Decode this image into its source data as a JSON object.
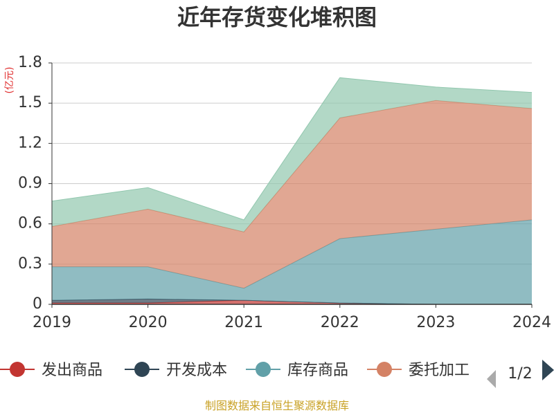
{
  "chart_data": {
    "type": "area",
    "stacked": true,
    "title": "近年存货变化堆积图",
    "unit_label": "(亿元)",
    "x": [
      "2019",
      "2020",
      "2021",
      "2022",
      "2023",
      "2024"
    ],
    "ylim": [
      0,
      1.8
    ],
    "yticks": [
      "0",
      "0.3",
      "0.6",
      "0.9",
      "1.2",
      "1.5",
      "1.8"
    ],
    "grid": true,
    "legend_position": "bottom",
    "series": [
      {
        "name": "发出商品",
        "color": "#c23531",
        "values": [
          0.01,
          0.01,
          0.03,
          0.01,
          0.0,
          0.0
        ]
      },
      {
        "name": "开发成本",
        "color": "#2f4554",
        "values": [
          0.02,
          0.03,
          0.0,
          0.0,
          0.0,
          0.0
        ]
      },
      {
        "name": "库存商品",
        "color": "#61a0a8",
        "values": [
          0.25,
          0.24,
          0.09,
          0.48,
          0.56,
          0.63
        ]
      },
      {
        "name": "委托加工",
        "color": "#d48265",
        "values": [
          0.3,
          0.43,
          0.42,
          0.9,
          0.96,
          0.83
        ]
      },
      {
        "name": "",
        "color": "#91c7ae",
        "values": [
          0.19,
          0.16,
          0.09,
          0.3,
          0.1,
          0.12
        ]
      }
    ],
    "legend_page": "1/2"
  },
  "footer": {
    "source": "制图数据来自恒生聚源数据库"
  }
}
